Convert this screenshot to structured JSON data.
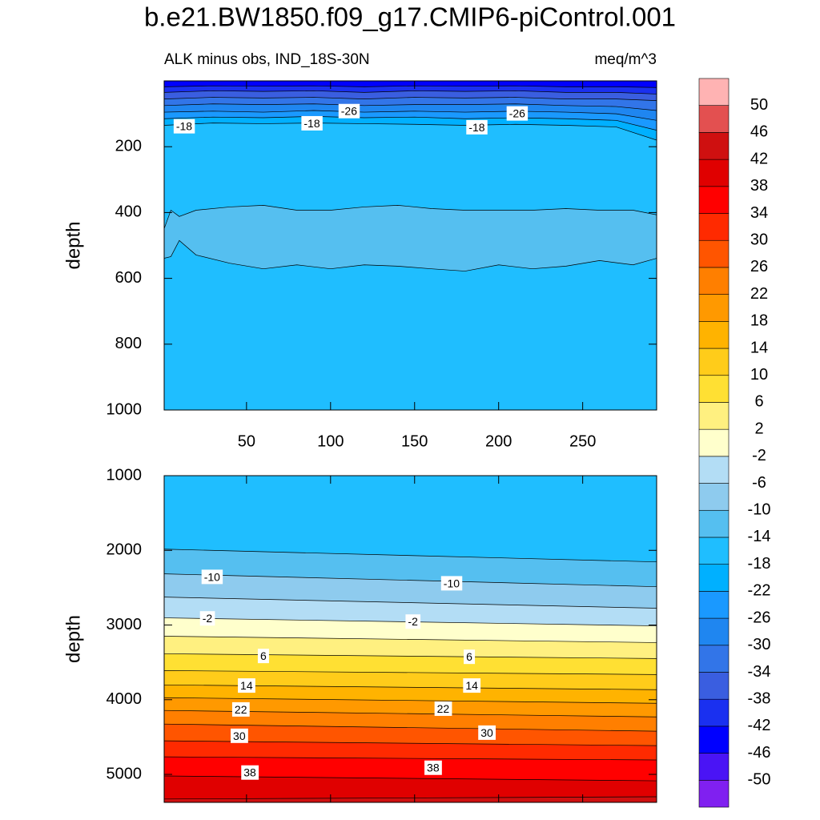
{
  "title": "b.e21.BW1850.f09_g17.CMIP6-piControl.001",
  "colorbar": {
    "levels": [
      -50,
      -46,
      -42,
      -38,
      -34,
      -30,
      -26,
      -22,
      -18,
      -14,
      -10,
      -6,
      -2,
      2,
      6,
      10,
      14,
      18,
      22,
      26,
      30,
      34,
      38,
      42,
      46,
      50
    ],
    "colors": [
      "#8020f0",
      "#4a14f5",
      "#0000ff",
      "#1a30f0",
      "#3a5ee0",
      "#3275e8",
      "#1f86f0",
      "#1a99ff",
      "#00b0ff",
      "#1fbeff",
      "#55bff0",
      "#8ecbee",
      "#b3ddf5",
      "#ffffcc",
      "#fff080",
      "#ffe033",
      "#ffcc1a",
      "#ffb300",
      "#ff9900",
      "#ff7f00",
      "#ff5500",
      "#ff2a00",
      "#ff0000",
      "#e00000",
      "#cf1010",
      "#e35050",
      "#ffb3b3"
    ]
  },
  "chart_data": [
    {
      "type": "contour",
      "subtitle_left": "ALK minus obs, IND_18S-30N",
      "subtitle_right": "meq/m^3",
      "ylabel": "depth",
      "xlim": [
        1,
        294
      ],
      "xticks": [
        50,
        100,
        150,
        200,
        250
      ],
      "xtick_labels": true,
      "ylim": [
        0,
        1000
      ],
      "yticks": [
        200,
        400,
        600,
        800,
        1000
      ],
      "y_reversed": true,
      "contours": [
        {
          "level": -42,
          "x": [
            1,
            30,
            60,
            90,
            120,
            150,
            180,
            210,
            240,
            270,
            294
          ],
          "depth": [
            18,
            15,
            16,
            15,
            18,
            15,
            16,
            15,
            18,
            18,
            20
          ]
        },
        {
          "level": -38,
          "x": [
            1,
            30,
            60,
            90,
            120,
            150,
            180,
            210,
            240,
            270,
            294
          ],
          "depth": [
            35,
            30,
            32,
            30,
            35,
            30,
            32,
            30,
            35,
            35,
            40
          ]
        },
        {
          "level": -34,
          "x": [
            1,
            30,
            60,
            90,
            120,
            150,
            180,
            210,
            240,
            270,
            294
          ],
          "depth": [
            55,
            50,
            52,
            50,
            55,
            50,
            52,
            50,
            55,
            55,
            60
          ]
        },
        {
          "level": -30,
          "x": [
            1,
            30,
            60,
            90,
            120,
            150,
            180,
            210,
            240,
            270,
            294
          ],
          "depth": [
            75,
            70,
            72,
            70,
            75,
            72,
            72,
            70,
            75,
            78,
            90
          ]
        },
        {
          "level": -26,
          "x": [
            1,
            30,
            60,
            90,
            120,
            150,
            180,
            210,
            240,
            270,
            294
          ],
          "depth": [
            95,
            92,
            95,
            90,
            95,
            92,
            95,
            92,
            95,
            100,
            120
          ]
        },
        {
          "level": -22,
          "x": [
            1,
            30,
            60,
            90,
            120,
            150,
            180,
            210,
            240,
            270,
            294
          ],
          "depth": [
            115,
            110,
            112,
            108,
            112,
            110,
            115,
            112,
            115,
            120,
            150
          ]
        },
        {
          "level": -18,
          "x": [
            1,
            30,
            60,
            90,
            120,
            150,
            180,
            210,
            240,
            270,
            294
          ],
          "depth": [
            135,
            128,
            130,
            128,
            130,
            132,
            135,
            132,
            135,
            140,
            180
          ]
        }
      ],
      "closed_contours": [
        {
          "level": -14,
          "x": [
            1,
            5,
            10,
            20,
            40,
            60,
            80,
            100,
            120,
            140,
            160,
            180,
            200,
            220,
            240,
            260,
            280,
            294
          ],
          "top": [
            449,
            393,
            412,
            393,
            383,
            378,
            393,
            393,
            383,
            378,
            388,
            393,
            393,
            393,
            388,
            393,
            393,
            407
          ],
          "bottom": [
            539,
            534,
            485,
            529,
            554,
            571,
            559,
            571,
            559,
            563,
            571,
            578,
            559,
            571,
            563,
            546,
            559,
            539
          ]
        }
      ],
      "labels": [
        {
          "value": -18,
          "x": 12.9,
          "depth": 141
        },
        {
          "value": -18,
          "x": 88.9,
          "depth": 132
        },
        {
          "value": -18,
          "x": 187,
          "depth": 144
        },
        {
          "value": -26,
          "x": 111,
          "depth": 95
        },
        {
          "value": -26,
          "x": 211,
          "depth": 102
        }
      ]
    },
    {
      "type": "contour",
      "ylabel": "depth",
      "xlim": [
        1,
        294
      ],
      "xticks": [
        50,
        100,
        150,
        200,
        250
      ],
      "xtick_labels": false,
      "ylim": [
        1000,
        5375
      ],
      "yticks": [
        1000,
        2000,
        3000,
        4000,
        5000
      ],
      "y_reversed": true,
      "contours": [
        {
          "level": -14,
          "x": [
            1,
            294
          ],
          "depth": [
            1984,
            2155
          ]
        },
        {
          "level": -10,
          "x": [
            1,
            294
          ],
          "depth": [
            2315,
            2487
          ]
        },
        {
          "level": -6,
          "x": [
            1,
            294
          ],
          "depth": [
            2626,
            2775
          ]
        },
        {
          "level": -2,
          "x": [
            1,
            294
          ],
          "depth": [
            2904,
            3011
          ]
        },
        {
          "level": 2,
          "x": [
            1,
            294
          ],
          "depth": [
            3150,
            3235
          ]
        },
        {
          "level": 6,
          "x": [
            1,
            294
          ],
          "depth": [
            3385,
            3449
          ]
        },
        {
          "level": 10,
          "x": [
            1,
            294
          ],
          "depth": [
            3610,
            3663
          ]
        },
        {
          "level": 14,
          "x": [
            1,
            294
          ],
          "depth": [
            3802,
            3866
          ]
        },
        {
          "level": 18,
          "x": [
            1,
            294
          ],
          "depth": [
            3973,
            4048
          ]
        },
        {
          "level": 22,
          "x": [
            1,
            294
          ],
          "depth": [
            4144,
            4230
          ]
        },
        {
          "level": 26,
          "x": [
            1,
            294
          ],
          "depth": [
            4326,
            4422
          ]
        },
        {
          "level": 30,
          "x": [
            1,
            294
          ],
          "depth": [
            4551,
            4615
          ]
        },
        {
          "level": 34,
          "x": [
            1,
            294
          ],
          "depth": [
            4765,
            4807
          ]
        },
        {
          "level": 38,
          "x": [
            1,
            294
          ],
          "depth": [
            5021,
            5086
          ]
        },
        {
          "level": 42,
          "x": [
            1,
            294
          ],
          "depth": [
            5330,
            5300
          ]
        }
      ],
      "closed_contours": [],
      "labels": [
        {
          "value": -10,
          "x": 29.5,
          "depth": 2369
        },
        {
          "value": -10,
          "x": 172,
          "depth": 2455
        },
        {
          "value": -2,
          "x": 26.7,
          "depth": 2925
        },
        {
          "value": -2,
          "x": 149,
          "depth": 2968
        },
        {
          "value": 6,
          "x": 60,
          "depth": 3428
        },
        {
          "value": 6,
          "x": 182.5,
          "depth": 3439
        },
        {
          "value": 14,
          "x": 50,
          "depth": 3824
        },
        {
          "value": 14,
          "x": 184,
          "depth": 3824
        },
        {
          "value": 22,
          "x": 46.6,
          "depth": 4144
        },
        {
          "value": 22,
          "x": 167,
          "depth": 4134
        },
        {
          "value": 30,
          "x": 45.7,
          "depth": 4497
        },
        {
          "value": 30,
          "x": 193,
          "depth": 4455
        },
        {
          "value": 38,
          "x": 52,
          "depth": 4989
        },
        {
          "value": 38,
          "x": 161,
          "depth": 4925
        }
      ]
    }
  ]
}
